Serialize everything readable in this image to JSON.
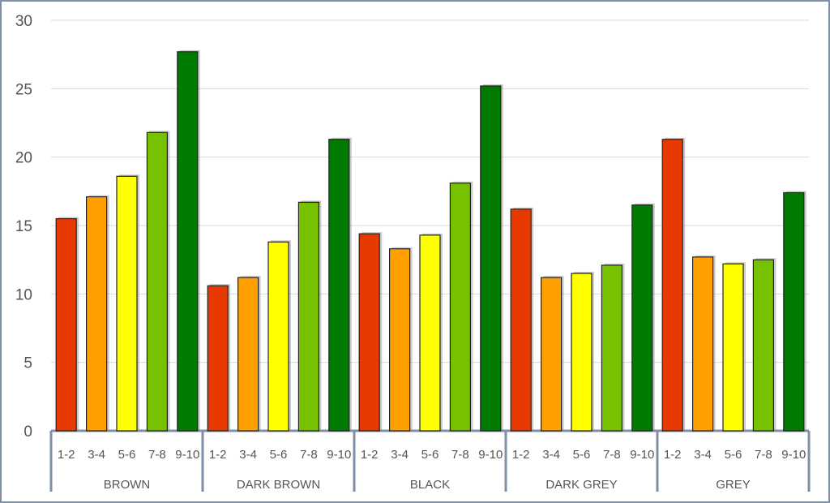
{
  "chart_data": {
    "type": "bar",
    "title": "",
    "xlabel": "",
    "ylabel": "",
    "ylim": [
      0,
      30
    ],
    "yticks": [
      0,
      5,
      10,
      15,
      20,
      25,
      30
    ],
    "grid": true,
    "legend": "none",
    "categories": [
      "1-2",
      "3-4",
      "5-6",
      "7-8",
      "9-10"
    ],
    "category_colors": [
      "#e83a00",
      "#ff9f00",
      "#ffff00",
      "#76c100",
      "#007a00"
    ],
    "groups": [
      {
        "name": "BROWN",
        "values": [
          15.5,
          17.1,
          18.6,
          21.8,
          27.7
        ]
      },
      {
        "name": "DARK BROWN",
        "values": [
          10.6,
          11.2,
          13.8,
          16.7,
          21.3
        ]
      },
      {
        "name": "BLACK",
        "values": [
          14.4,
          13.3,
          14.3,
          18.1,
          25.2
        ]
      },
      {
        "name": "DARK GREY",
        "values": [
          16.2,
          11.2,
          11.5,
          12.1,
          16.5
        ]
      },
      {
        "name": "GREY",
        "values": [
          21.3,
          12.7,
          12.2,
          12.5,
          17.4
        ]
      }
    ]
  }
}
